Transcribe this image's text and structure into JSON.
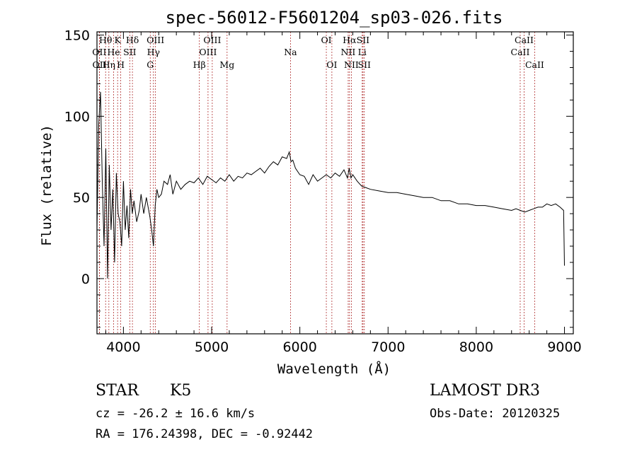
{
  "chart_data": {
    "type": "line",
    "title": "spec-56012-F5601204_sp03-026.fits",
    "xlabel": "Wavelength (Å)",
    "ylabel": "Flux (relative)",
    "xlim": [
      3700,
      9100
    ],
    "ylim": [
      -34,
      152
    ],
    "xticks": [
      4000,
      5000,
      6000,
      7000,
      8000,
      9000
    ],
    "yticks": [
      0,
      50,
      100,
      150
    ],
    "spectrum": {
      "name": "flux",
      "x": [
        3700,
        3720,
        3740,
        3760,
        3780,
        3800,
        3820,
        3840,
        3860,
        3880,
        3900,
        3920,
        3940,
        3960,
        3980,
        4000,
        4020,
        4040,
        4060,
        4080,
        4100,
        4120,
        4150,
        4180,
        4200,
        4230,
        4260,
        4300,
        4320,
        4340,
        4360,
        4380,
        4400,
        4430,
        4460,
        4500,
        4530,
        4560,
        4600,
        4650,
        4700,
        4750,
        4800,
        4850,
        4900,
        4950,
        5000,
        5050,
        5100,
        5150,
        5200,
        5250,
        5300,
        5350,
        5400,
        5450,
        5500,
        5550,
        5600,
        5650,
        5700,
        5750,
        5800,
        5850,
        5880,
        5900,
        5920,
        5950,
        6000,
        6050,
        6100,
        6150,
        6200,
        6250,
        6300,
        6350,
        6400,
        6450,
        6500,
        6540,
        6560,
        6580,
        6600,
        6650,
        6700,
        6750,
        6800,
        6900,
        7000,
        7100,
        7200,
        7300,
        7400,
        7500,
        7600,
        7700,
        7800,
        7900,
        8000,
        8100,
        8200,
        8300,
        8400,
        8450,
        8500,
        8550,
        8600,
        8650,
        8700,
        8750,
        8800,
        8850,
        8900,
        8950,
        8990,
        9000
      ],
      "y": [
        30,
        95,
        115,
        60,
        20,
        80,
        0,
        70,
        30,
        55,
        10,
        65,
        40,
        35,
        20,
        60,
        30,
        45,
        25,
        55,
        40,
        48,
        35,
        42,
        52,
        40,
        50,
        38,
        30,
        20,
        45,
        55,
        50,
        52,
        60,
        58,
        64,
        52,
        60,
        55,
        58,
        60,
        59,
        62,
        58,
        63,
        61,
        59,
        62,
        60,
        64,
        60,
        63,
        62,
        65,
        64,
        66,
        68,
        65,
        69,
        72,
        70,
        75,
        74,
        78,
        72,
        73,
        68,
        64,
        63,
        58,
        64,
        60,
        62,
        64,
        62,
        65,
        63,
        67,
        62,
        68,
        62,
        64,
        60,
        57,
        56,
        55,
        54,
        53,
        53,
        52,
        51,
        50,
        50,
        48,
        48,
        46,
        46,
        45,
        45,
        44,
        43,
        42,
        43,
        42,
        41,
        42,
        43,
        44,
        44,
        46,
        45,
        46,
        44,
        42,
        8
      ]
    },
    "line_markers": [
      {
        "label": "OII",
        "wavelength": 3727,
        "row": 2
      },
      {
        "label": "OII",
        "wavelength": 3729,
        "row": 3
      },
      {
        "label": "Hθ",
        "wavelength": 3798,
        "row": 1
      },
      {
        "label": "He",
        "wavelength": 3889,
        "row": 2
      },
      {
        "label": "Hη",
        "wavelength": 3835,
        "row": 3
      },
      {
        "label": "K",
        "wavelength": 3934,
        "row": 1
      },
      {
        "label": "H",
        "wavelength": 3969,
        "row": 3
      },
      {
        "label": "SII",
        "wavelength": 4072,
        "row": 2
      },
      {
        "label": "Hδ",
        "wavelength": 4102,
        "row": 1
      },
      {
        "label": "OIII",
        "wavelength": 4363,
        "row": 1
      },
      {
        "label": "Hγ",
        "wavelength": 4340,
        "row": 2
      },
      {
        "label": "G",
        "wavelength": 4304,
        "row": 3
      },
      {
        "label": "Hβ",
        "wavelength": 4861,
        "row": 3
      },
      {
        "label": "OIII",
        "wavelength": 5007,
        "row": 1
      },
      {
        "label": "OIII",
        "wavelength": 4959,
        "row": 2
      },
      {
        "label": "Mg",
        "wavelength": 5175,
        "row": 3
      },
      {
        "label": "Na",
        "wavelength": 5894,
        "row": 2
      },
      {
        "label": "OI",
        "wavelength": 6300,
        "row": 1
      },
      {
        "label": "OI",
        "wavelength": 6363,
        "row": 3
      },
      {
        "label": "Hα",
        "wavelength": 6563,
        "row": 1
      },
      {
        "label": "NII",
        "wavelength": 6548,
        "row": 2
      },
      {
        "label": "NII",
        "wavelength": 6584,
        "row": 3
      },
      {
        "label": "SII",
        "wavelength": 6716,
        "row": 1
      },
      {
        "label": "Li",
        "wavelength": 6707,
        "row": 2
      },
      {
        "label": "SII",
        "wavelength": 6731,
        "row": 3
      },
      {
        "label": "CaII",
        "wavelength": 8542,
        "row": 1
      },
      {
        "label": "CaII",
        "wavelength": 8498,
        "row": 2
      },
      {
        "label": "CaII",
        "wavelength": 8662,
        "row": 3
      }
    ]
  },
  "info": {
    "class": "STAR",
    "subclass": "K5",
    "survey": "LAMOST DR3",
    "cz": "cz = -26.2 ± 16.6 km/s",
    "obs_date": "Obs-Date: 20120325",
    "coords": "RA = 176.24398, DEC =  -0.92442"
  },
  "colors": {
    "marker": "#b03030",
    "spectrum": "#000000"
  }
}
